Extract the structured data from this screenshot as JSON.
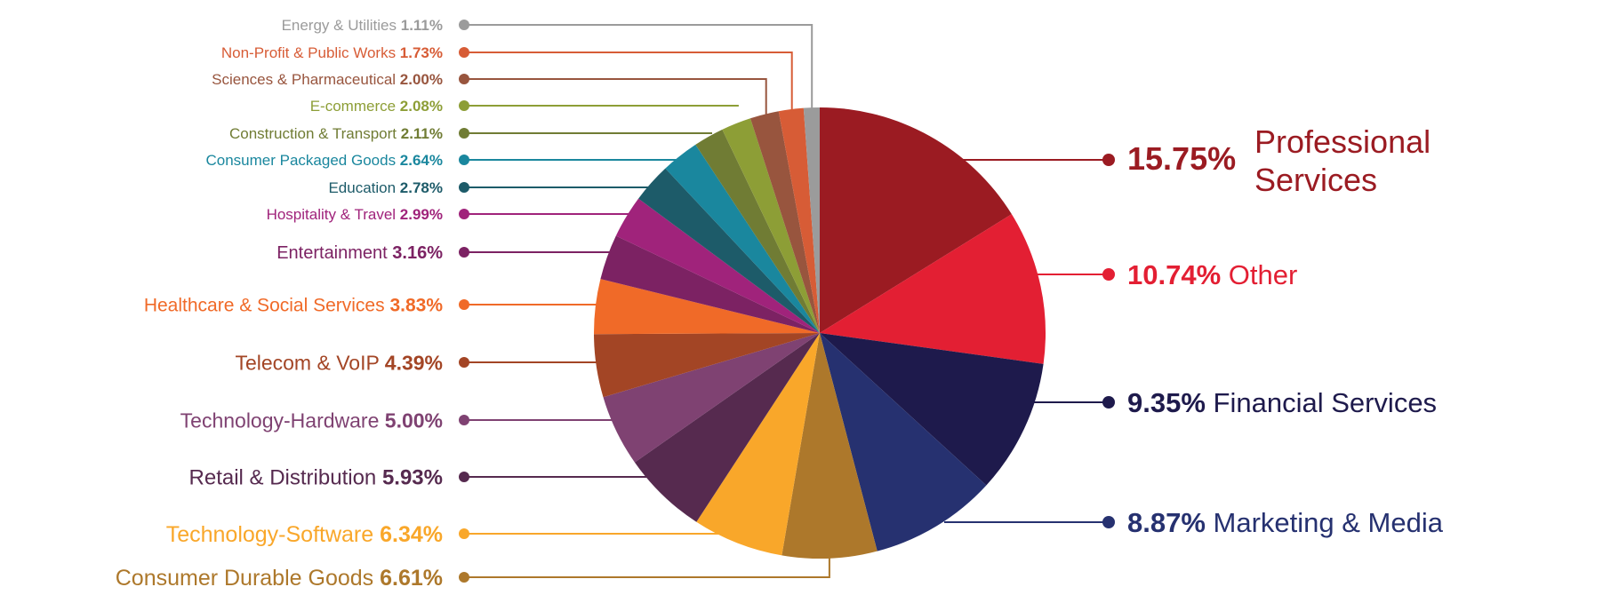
{
  "chart_data": {
    "type": "pie",
    "title": "",
    "start_angle": "12 o'clock",
    "direction": "clockwise",
    "slices": [
      {
        "label": "Professional Services",
        "value": 15.75,
        "display": "15.75%",
        "color": "#9B1B22"
      },
      {
        "label": "Other",
        "value": 10.74,
        "display": "10.74%",
        "color": "#E31F33"
      },
      {
        "label": "Financial Services",
        "value": 9.35,
        "display": "9.35%",
        "color": "#1E1A4C"
      },
      {
        "label": "Marketing & Media",
        "value": 8.87,
        "display": "8.87%",
        "color": "#263170"
      },
      {
        "label": "Consumer Durable Goods",
        "value": 6.61,
        "display": "6.61%",
        "color": "#AD782B"
      },
      {
        "label": "Technology-Software",
        "value": 6.34,
        "display": "6.34%",
        "color": "#F9A72A"
      },
      {
        "label": "Retail & Distribution",
        "value": 5.93,
        "display": "5.93%",
        "color": "#562A4F"
      },
      {
        "label": "Technology-Hardware",
        "value": 5.0,
        "display": "5.00%",
        "color": "#7F4272"
      },
      {
        "label": "Telecom & VoIP",
        "value": 4.39,
        "display": "4.39%",
        "color": "#A34525"
      },
      {
        "label": "Healthcare & Social Services",
        "value": 3.83,
        "display": "3.83%",
        "color": "#F06A28"
      },
      {
        "label": "Entertainment",
        "value": 3.16,
        "display": "3.16%",
        "color": "#7C2263"
      },
      {
        "label": "Hospitality & Travel",
        "value": 2.99,
        "display": "2.99%",
        "color": "#A0237B"
      },
      {
        "label": "Education",
        "value": 2.78,
        "display": "2.78%",
        "color": "#1D5B69"
      },
      {
        "label": "Consumer Packaged Goods",
        "value": 2.64,
        "display": "2.64%",
        "color": "#1A879E"
      },
      {
        "label": "Construction & Transport",
        "value": 2.11,
        "display": "2.11%",
        "color": "#707C34"
      },
      {
        "label": "E-commerce",
        "value": 2.08,
        "display": "2.08%",
        "color": "#8D9E36"
      },
      {
        "label": "Sciences & Pharmaceutical",
        "value": 2.0,
        "display": "2.00%",
        "color": "#98553E"
      },
      {
        "label": "Non-Profit & Public Works",
        "value": 1.73,
        "display": "1.73%",
        "color": "#D75C36"
      },
      {
        "label": "Energy & Utilities",
        "value": 1.11,
        "display": "1.11%",
        "color": "#9B9B9B"
      }
    ]
  }
}
